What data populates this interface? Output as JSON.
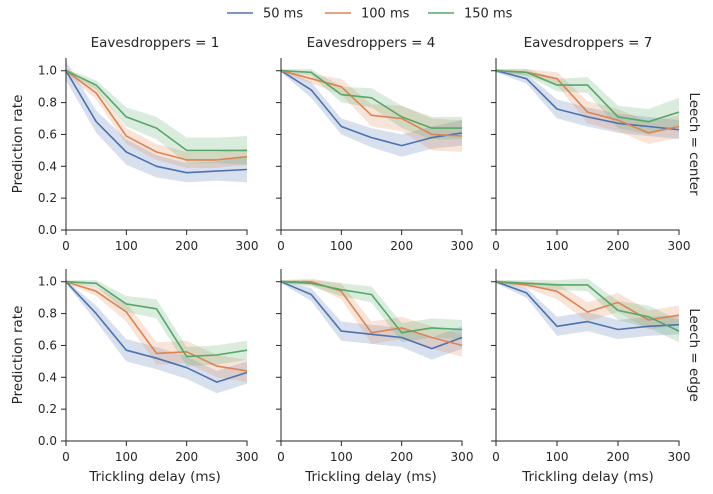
{
  "chart_data": {
    "type": "line",
    "legend": {
      "placement": "top-center",
      "entries": [
        {
          "label": "50 ms",
          "color": "#4c72b0"
        },
        {
          "label": "100 ms",
          "color": "#dd8452"
        },
        {
          "label": "150 ms",
          "color": "#55a868"
        }
      ]
    },
    "x": [
      0,
      50,
      100,
      150,
      200,
      250,
      300
    ],
    "xticks": [
      "0",
      "100",
      "200",
      "300"
    ],
    "xtick_values": [
      0,
      100,
      200,
      300
    ],
    "yticks": [
      "0.0",
      "0.2",
      "0.4",
      "0.6",
      "0.8",
      "1.0"
    ],
    "ytick_values": [
      0.0,
      0.2,
      0.4,
      0.6,
      0.8,
      1.0
    ],
    "xlim": [
      0,
      300
    ],
    "ylim": [
      0.0,
      1.08
    ],
    "xlabel": "Trickling delay (ms)",
    "ylabel": "Prediction rate",
    "column_titles": [
      "Eavesdroppers = 1",
      "Eavesdroppers = 4",
      "Eavesdroppers = 7"
    ],
    "row_titles": [
      "Leech = center",
      "Leech = edge"
    ],
    "grid": false,
    "panels": [
      {
        "row": 0,
        "col": 0,
        "series": [
          {
            "name": "50 ms",
            "values": [
              1.0,
              0.68,
              0.49,
              0.4,
              0.36,
              0.37,
              0.38
            ],
            "band": [
              0.06,
              0.07,
              0.08,
              0.07,
              0.06,
              0.06,
              0.08
            ]
          },
          {
            "name": "100 ms",
            "values": [
              1.0,
              0.86,
              0.59,
              0.49,
              0.44,
              0.44,
              0.46
            ],
            "band": [
              0.02,
              0.04,
              0.05,
              0.05,
              0.05,
              0.05,
              0.05
            ]
          },
          {
            "name": "150 ms",
            "values": [
              1.0,
              0.91,
              0.71,
              0.64,
              0.5,
              0.5,
              0.5
            ],
            "band": [
              0.01,
              0.03,
              0.06,
              0.07,
              0.08,
              0.08,
              0.09
            ]
          }
        ]
      },
      {
        "row": 0,
        "col": 1,
        "series": [
          {
            "name": "50 ms",
            "values": [
              1.0,
              0.88,
              0.65,
              0.58,
              0.53,
              0.58,
              0.61
            ],
            "band": [
              0.01,
              0.05,
              0.05,
              0.06,
              0.07,
              0.07,
              0.08
            ]
          },
          {
            "name": "100 ms",
            "values": [
              1.0,
              0.95,
              0.9,
              0.72,
              0.7,
              0.6,
              0.59
            ],
            "band": [
              0.01,
              0.03,
              0.05,
              0.07,
              0.08,
              0.1,
              0.1
            ]
          },
          {
            "name": "150 ms",
            "values": [
              1.0,
              0.99,
              0.85,
              0.83,
              0.71,
              0.64,
              0.64
            ],
            "band": [
              0.01,
              0.02,
              0.05,
              0.06,
              0.07,
              0.07,
              0.07
            ]
          }
        ]
      },
      {
        "row": 0,
        "col": 2,
        "series": [
          {
            "name": "50 ms",
            "values": [
              1.0,
              0.95,
              0.76,
              0.71,
              0.67,
              0.65,
              0.63
            ],
            "band": [
              0.01,
              0.03,
              0.06,
              0.06,
              0.06,
              0.06,
              0.06
            ]
          },
          {
            "name": "100 ms",
            "values": [
              1.0,
              0.99,
              0.95,
              0.74,
              0.69,
              0.61,
              0.65
            ],
            "band": [
              0.01,
              0.02,
              0.04,
              0.07,
              0.07,
              0.07,
              0.07
            ]
          },
          {
            "name": "150 ms",
            "values": [
              1.0,
              0.99,
              0.91,
              0.91,
              0.71,
              0.68,
              0.74
            ],
            "band": [
              0.01,
              0.02,
              0.04,
              0.05,
              0.07,
              0.08,
              0.09
            ]
          }
        ]
      },
      {
        "row": 1,
        "col": 0,
        "series": [
          {
            "name": "50 ms",
            "values": [
              1.0,
              0.8,
              0.57,
              0.52,
              0.46,
              0.37,
              0.43
            ],
            "band": [
              0.01,
              0.05,
              0.07,
              0.07,
              0.07,
              0.07,
              0.07
            ]
          },
          {
            "name": "100 ms",
            "values": [
              1.0,
              0.94,
              0.81,
              0.55,
              0.56,
              0.47,
              0.44
            ],
            "band": [
              0.01,
              0.03,
              0.06,
              0.07,
              0.07,
              0.07,
              0.07
            ]
          },
          {
            "name": "150 ms",
            "values": [
              1.0,
              0.99,
              0.86,
              0.83,
              0.53,
              0.54,
              0.57
            ],
            "band": [
              0.01,
              0.02,
              0.05,
              0.06,
              0.06,
              0.06,
              0.06
            ]
          }
        ]
      },
      {
        "row": 1,
        "col": 1,
        "series": [
          {
            "name": "50 ms",
            "values": [
              1.0,
              0.92,
              0.69,
              0.67,
              0.65,
              0.58,
              0.65
            ],
            "band": [
              0.01,
              0.04,
              0.06,
              0.06,
              0.06,
              0.07,
              0.07
            ]
          },
          {
            "name": "100 ms",
            "values": [
              1.0,
              1.0,
              0.94,
              0.68,
              0.71,
              0.65,
              0.6
            ],
            "band": [
              0.01,
              0.02,
              0.05,
              0.07,
              0.07,
              0.07,
              0.07
            ]
          },
          {
            "name": "150 ms",
            "values": [
              1.0,
              0.99,
              0.95,
              0.92,
              0.68,
              0.71,
              0.7
            ],
            "band": [
              0.01,
              0.02,
              0.04,
              0.05,
              0.06,
              0.06,
              0.06
            ]
          }
        ]
      },
      {
        "row": 1,
        "col": 2,
        "series": [
          {
            "name": "50 ms",
            "values": [
              1.0,
              0.93,
              0.72,
              0.75,
              0.7,
              0.72,
              0.73
            ],
            "band": [
              0.01,
              0.03,
              0.06,
              0.06,
              0.06,
              0.06,
              0.06
            ]
          },
          {
            "name": "100 ms",
            "values": [
              1.0,
              0.98,
              0.94,
              0.81,
              0.87,
              0.76,
              0.79
            ],
            "band": [
              0.01,
              0.02,
              0.05,
              0.06,
              0.06,
              0.06,
              0.06
            ]
          },
          {
            "name": "150 ms",
            "values": [
              1.0,
              0.99,
              0.98,
              0.98,
              0.82,
              0.78,
              0.69
            ],
            "band": [
              0.01,
              0.02,
              0.03,
              0.04,
              0.06,
              0.07,
              0.07
            ]
          }
        ]
      }
    ]
  }
}
